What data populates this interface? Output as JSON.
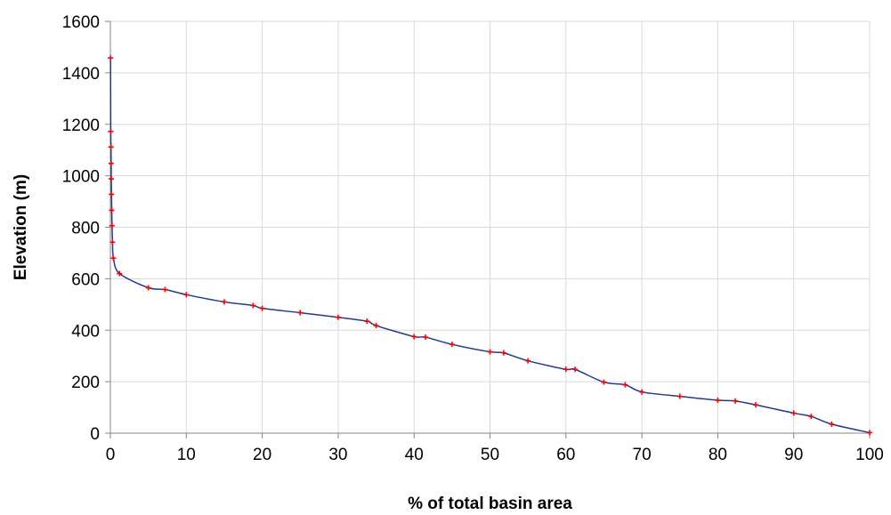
{
  "chart_data": {
    "type": "line",
    "title": "",
    "xlabel": "% of total basin area",
    "ylabel": "Elevation (m)",
    "xlim": [
      0,
      100
    ],
    "ylim": [
      0,
      1600
    ],
    "xticks": [
      0,
      10,
      20,
      30,
      40,
      50,
      60,
      70,
      80,
      90,
      100
    ],
    "yticks": [
      0,
      200,
      400,
      600,
      800,
      1000,
      1200,
      1400,
      1600
    ],
    "grid": true,
    "legend": "none",
    "line_color": "#1f3a93",
    "marker_color": "#ff0000",
    "series": [
      {
        "x": [
          0.02,
          0.05,
          0.08,
          0.1,
          0.12,
          0.15,
          0.18,
          0.22,
          0.28,
          0.4,
          1.2,
          5,
          7.2,
          10,
          15,
          18.8,
          20,
          25,
          30,
          33.8,
          35,
          40,
          41.5,
          45,
          50,
          51.8,
          55,
          60,
          61.2,
          65,
          67.8,
          70,
          75,
          80,
          82.3,
          85,
          90,
          92.3,
          95,
          100
        ],
        "y": [
          1458,
          1172,
          1112,
          1048,
          988,
          928,
          866,
          806,
          742,
          680,
          620,
          565,
          558,
          538,
          510,
          496,
          485,
          468,
          450,
          435,
          418,
          375,
          373,
          345,
          316,
          312,
          281,
          248,
          248,
          198,
          188,
          160,
          143,
          128,
          125,
          110,
          78,
          65,
          35,
          2
        ]
      }
    ]
  }
}
